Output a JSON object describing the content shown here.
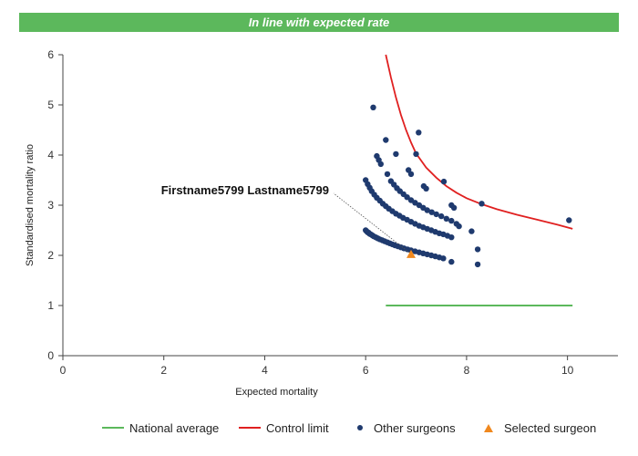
{
  "banner": {
    "text": "In line with expected rate",
    "color": "#5cb85c"
  },
  "chart_data": {
    "type": "scatter",
    "xlabel": "Expected mortality",
    "ylabel": "Standardised mortality ratio",
    "xlim": [
      0,
      11
    ],
    "ylim": [
      0,
      6
    ],
    "xticks": [
      "0",
      "2",
      "4",
      "6",
      "8",
      "10"
    ],
    "yticks": [
      "0",
      "1",
      "2",
      "3",
      "4",
      "5",
      "6"
    ],
    "grid": false,
    "legend_position": "bottom",
    "colors": {
      "national": "#5cb85c",
      "control": "#e02020",
      "others": "#1f3a6e",
      "selected": "#f0881e"
    },
    "national_average": {
      "name": "National average",
      "x": [
        6.4,
        10.1
      ],
      "y": [
        1.0,
        1.0
      ]
    },
    "control_limit": {
      "name": "Control limit",
      "x": [
        6.4,
        6.5,
        6.6,
        6.7,
        6.8,
        6.9,
        7.0,
        7.2,
        7.4,
        7.6,
        7.8,
        8.0,
        8.3,
        8.6,
        9.0,
        9.4,
        9.8,
        10.1
      ],
      "y": [
        6.0,
        5.55,
        5.15,
        4.8,
        4.5,
        4.25,
        4.03,
        3.75,
        3.55,
        3.38,
        3.25,
        3.14,
        3.02,
        2.92,
        2.81,
        2.71,
        2.61,
        2.53
      ]
    },
    "other_surgeons": {
      "name": "Other surgeons",
      "points": [
        [
          6.0,
          2.5
        ],
        [
          6.02,
          2.48
        ],
        [
          6.04,
          2.46
        ],
        [
          6.06,
          2.45
        ],
        [
          6.08,
          2.43
        ],
        [
          6.1,
          2.42
        ],
        [
          6.13,
          2.4
        ],
        [
          6.16,
          2.38
        ],
        [
          6.2,
          2.36
        ],
        [
          6.24,
          2.34
        ],
        [
          6.28,
          2.32
        ],
        [
          6.33,
          2.3
        ],
        [
          6.38,
          2.28
        ],
        [
          6.43,
          2.26
        ],
        [
          6.48,
          2.24
        ],
        [
          6.53,
          2.22
        ],
        [
          6.58,
          2.2
        ],
        [
          6.64,
          2.18
        ],
        [
          6.7,
          2.16
        ],
        [
          6.76,
          2.14
        ],
        [
          6.83,
          2.12
        ],
        [
          6.9,
          2.1
        ],
        [
          6.98,
          2.08
        ],
        [
          7.06,
          2.06
        ],
        [
          7.14,
          2.04
        ],
        [
          7.22,
          2.02
        ],
        [
          7.3,
          2.0
        ],
        [
          7.38,
          1.98
        ],
        [
          7.46,
          1.96
        ],
        [
          7.54,
          1.94
        ],
        [
          6.0,
          3.5
        ],
        [
          6.04,
          3.42
        ],
        [
          6.08,
          3.35
        ],
        [
          6.12,
          3.28
        ],
        [
          6.17,
          3.21
        ],
        [
          6.22,
          3.15
        ],
        [
          6.28,
          3.09
        ],
        [
          6.34,
          3.03
        ],
        [
          6.4,
          2.98
        ],
        [
          6.46,
          2.93
        ],
        [
          6.53,
          2.88
        ],
        [
          6.6,
          2.83
        ],
        [
          6.67,
          2.79
        ],
        [
          6.74,
          2.75
        ],
        [
          6.82,
          2.71
        ],
        [
          6.9,
          2.67
        ],
        [
          6.98,
          2.63
        ],
        [
          7.06,
          2.59
        ],
        [
          7.14,
          2.56
        ],
        [
          7.22,
          2.53
        ],
        [
          7.3,
          2.5
        ],
        [
          7.38,
          2.47
        ],
        [
          7.46,
          2.44
        ],
        [
          7.54,
          2.42
        ],
        [
          7.62,
          2.39
        ],
        [
          7.7,
          2.36
        ],
        [
          6.5,
          3.48
        ],
        [
          6.56,
          3.41
        ],
        [
          6.62,
          3.34
        ],
        [
          6.68,
          3.28
        ],
        [
          6.75,
          3.22
        ],
        [
          6.82,
          3.16
        ],
        [
          6.9,
          3.1
        ],
        [
          6.98,
          3.05
        ],
        [
          7.06,
          3.0
        ],
        [
          7.14,
          2.95
        ],
        [
          7.22,
          2.9
        ],
        [
          7.31,
          2.86
        ],
        [
          7.4,
          2.82
        ],
        [
          7.5,
          2.78
        ],
        [
          7.6,
          2.73
        ],
        [
          7.7,
          2.69
        ],
        [
          7.8,
          2.63
        ],
        [
          6.22,
          3.98
        ],
        [
          6.26,
          3.9
        ],
        [
          6.3,
          3.82
        ],
        [
          6.43,
          3.62
        ],
        [
          6.4,
          4.3
        ],
        [
          6.15,
          4.95
        ],
        [
          6.6,
          4.02
        ],
        [
          6.85,
          3.7
        ],
        [
          6.9,
          3.62
        ],
        [
          7.0,
          4.02
        ],
        [
          7.05,
          4.45
        ],
        [
          7.15,
          3.38
        ],
        [
          7.2,
          3.33
        ],
        [
          7.55,
          3.47
        ],
        [
          7.7,
          3.0
        ],
        [
          7.75,
          2.95
        ],
        [
          7.85,
          2.58
        ],
        [
          8.1,
          2.48
        ],
        [
          8.22,
          2.12
        ],
        [
          8.22,
          1.82
        ],
        [
          8.3,
          3.03
        ],
        [
          7.7,
          1.87
        ],
        [
          10.03,
          2.7
        ]
      ]
    },
    "selected_surgeon": {
      "name": "Selected surgeon",
      "label": "Firstname5799 Lastname5799",
      "x": 6.9,
      "y": 2.02
    },
    "legend": [
      "National average",
      "Control limit",
      "Other surgeons",
      "Selected surgeon"
    ]
  }
}
